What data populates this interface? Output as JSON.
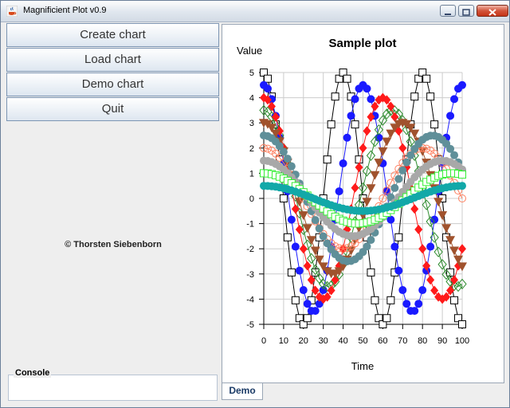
{
  "window": {
    "title": "Magnificient Plot v0.9"
  },
  "buttons": {
    "create": "Create chart",
    "load": "Load chart",
    "demo": "Demo chart",
    "quit": "Quit"
  },
  "credit": "© Thorsten Siebenborn",
  "console": {
    "label": "Console",
    "text": ""
  },
  "tabs": [
    {
      "label": "Demo",
      "selected": true
    }
  ],
  "chart_data": {
    "type": "line",
    "title": "Sample plot",
    "xlabel": "Time",
    "ylabel": "Value",
    "xlim": [
      0,
      100
    ],
    "ylim": [
      -5,
      5
    ],
    "xticks": [
      0,
      10,
      20,
      30,
      40,
      50,
      60,
      70,
      80,
      90,
      100
    ],
    "yticks": [
      5,
      4,
      3,
      2,
      1,
      0,
      -1,
      -2,
      -3,
      -4,
      -5
    ],
    "grid": true,
    "x_sample_step": 2,
    "series": [
      {
        "marker": "square-open",
        "color": "#000000",
        "amplitude": 5,
        "period": 40,
        "phase_deg": 90
      },
      {
        "marker": "circle",
        "color": "#1a1aff",
        "amplitude": 4.5,
        "period": 50,
        "phase_deg": 90
      },
      {
        "marker": "diamond-open",
        "color": "#2e8b2e",
        "amplitude": 3.5,
        "period": 65,
        "phase_deg": 90
      },
      {
        "marker": "diamond",
        "color": "#ff1a1a",
        "amplitude": 4,
        "period": 60,
        "phase_deg": 90
      },
      {
        "marker": "triangle-down",
        "color": "#a0522d",
        "amplitude": 3,
        "period": 70,
        "phase_deg": 90
      },
      {
        "marker": "circle-open",
        "color": "#ff8060",
        "amplitude": 2,
        "period": 80,
        "phase_deg": 90
      },
      {
        "marker": "circle",
        "color": "#5f8f99",
        "amplitude": 2.5,
        "period": 85,
        "phase_deg": 90
      },
      {
        "marker": "circle",
        "color": "#a8a8a8",
        "amplitude": 1.5,
        "period": 90,
        "phase_deg": 90
      },
      {
        "marker": "square-open",
        "color": "#33ee33",
        "amplitude": 1,
        "period": 95,
        "phase_deg": 90
      },
      {
        "marker": "circle",
        "color": "#12a8a8",
        "amplitude": 0.5,
        "period": 100,
        "phase_deg": 90
      }
    ]
  }
}
